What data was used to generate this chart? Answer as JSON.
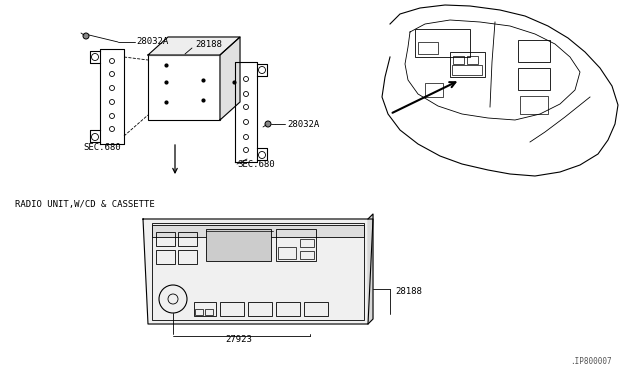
{
  "bg_color": "#ffffff",
  "line_color": "#000000",
  "fig_width": 6.4,
  "fig_height": 3.72,
  "dpi": 100,
  "watermark": ".IP800007",
  "title_text": "RADIO UNIT,W/CD & CASSETTE",
  "labels": {
    "28032A_top": "28032A",
    "28188_top": "28188",
    "28032A_right": "28032A",
    "SEC680_left": "SEC.680",
    "SEC680_right": "SEC.680",
    "28188_bottom": "28188",
    "27923": "27923"
  }
}
